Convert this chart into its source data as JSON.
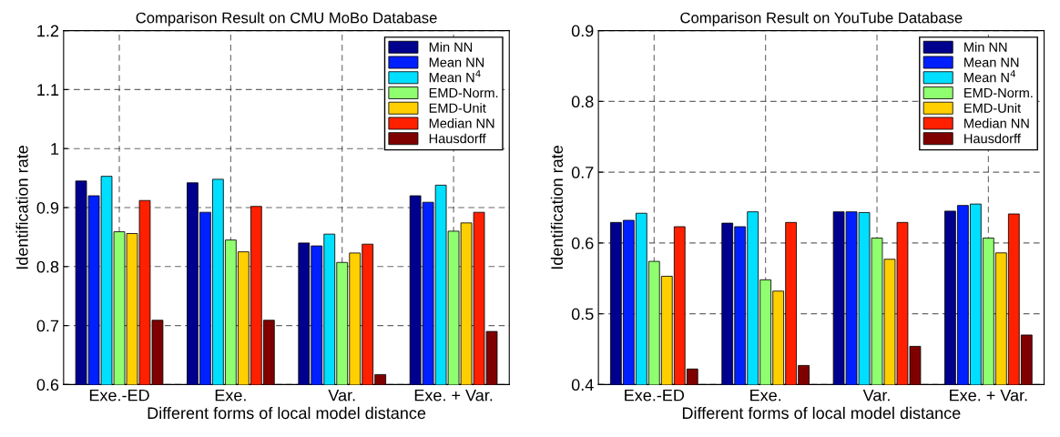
{
  "chart_data": [
    {
      "type": "bar",
      "title": "Comparison Result on CMU MoBo Database",
      "xlabel": "Different forms of local model distance",
      "ylabel": "Identification rate",
      "categories": [
        "Exe.-ED",
        "Exe.",
        "Var.",
        "Exe. + Var."
      ],
      "ylim": [
        0.6,
        1.2
      ],
      "yticks": [
        0.6,
        0.7,
        0.8,
        0.9,
        {
          "value": 1.0,
          "label": "1"
        },
        1.1,
        1.2
      ],
      "grid": true,
      "legend": "top right",
      "series": [
        {
          "name": "Min NN",
          "color": "#00008f",
          "values": [
            0.945,
            0.942,
            0.84,
            0.92
          ]
        },
        {
          "name": "Mean NN",
          "color": "#0020ff",
          "values": [
            0.92,
            0.892,
            0.835,
            0.909
          ]
        },
        {
          "name": "Mean N$^{4}$",
          "color": "#00dfff",
          "values": [
            0.953,
            0.948,
            0.855,
            0.938
          ]
        },
        {
          "name": "EMD-Norm.",
          "color": "#8fff70",
          "values": [
            0.859,
            0.845,
            0.807,
            0.86
          ]
        },
        {
          "name": "EMD-Unit",
          "color": "#ffcf00",
          "values": [
            0.856,
            0.825,
            0.823,
            0.874
          ]
        },
        {
          "name": "Median NN",
          "color": "#ff2000",
          "values": [
            0.912,
            0.902,
            0.838,
            0.892
          ]
        },
        {
          "name": "Hausdorff",
          "color": "#800000",
          "values": [
            0.709,
            0.709,
            0.617,
            0.69
          ]
        }
      ]
    },
    {
      "type": "bar",
      "title": "Comparison Result on YouTube Database",
      "xlabel": "Different forms of local model distance",
      "ylabel": "Identification rate",
      "categories": [
        "Exe.-ED",
        "Exe.",
        "Var.",
        "Exe. + Var."
      ],
      "ylim": [
        0.4,
        0.9
      ],
      "yticks": [
        0.4,
        0.5,
        0.6,
        0.7,
        0.8,
        0.9
      ],
      "grid": true,
      "legend": "top right",
      "series": [
        {
          "name": "Min NN",
          "color": "#00008f",
          "values": [
            0.629,
            0.628,
            0.644,
            0.645
          ]
        },
        {
          "name": "Mean NN",
          "color": "#0020ff",
          "values": [
            0.632,
            0.623,
            0.644,
            0.653
          ]
        },
        {
          "name": "Mean N$^{4}$",
          "color": "#00dfff",
          "values": [
            0.642,
            0.644,
            0.643,
            0.655
          ]
        },
        {
          "name": "EMD-Norm.",
          "color": "#8fff70",
          "values": [
            0.574,
            0.548,
            0.607,
            0.607
          ]
        },
        {
          "name": "EMD-Unit",
          "color": "#ffcf00",
          "values": [
            0.553,
            0.532,
            0.577,
            0.586
          ]
        },
        {
          "name": "Median NN",
          "color": "#ff2000",
          "values": [
            0.623,
            0.629,
            0.629,
            0.641
          ]
        },
        {
          "name": "Hausdorff",
          "color": "#800000",
          "values": [
            0.422,
            0.427,
            0.454,
            0.47
          ]
        }
      ]
    }
  ]
}
